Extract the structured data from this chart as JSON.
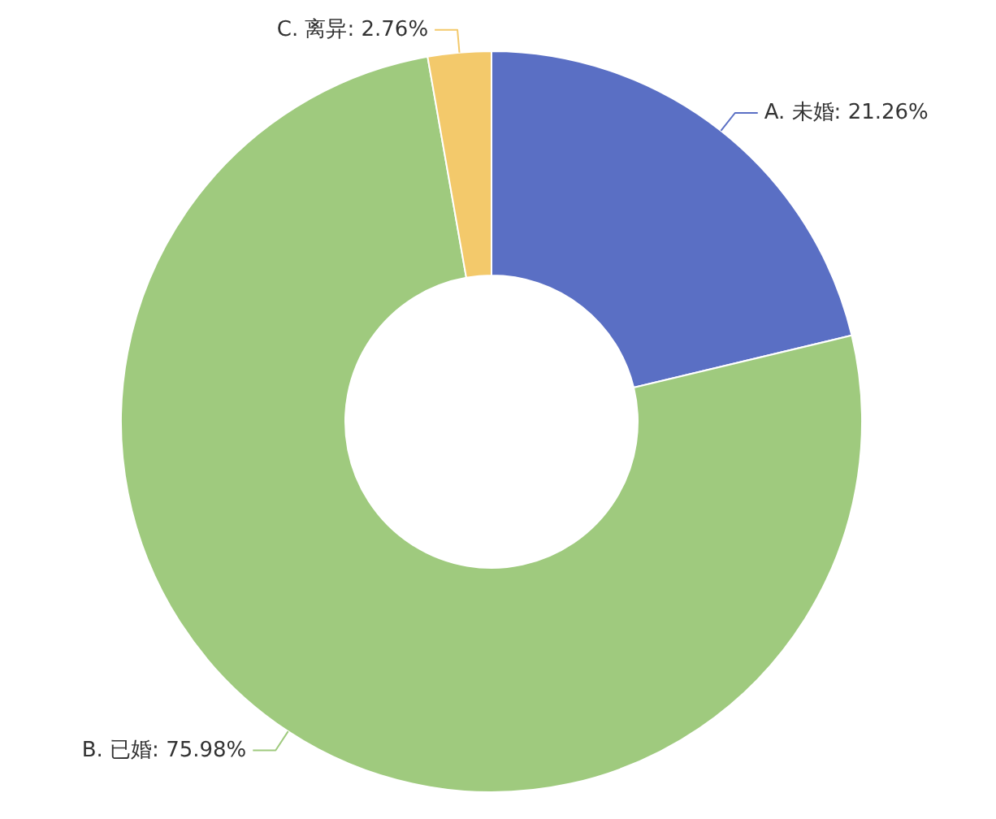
{
  "chart_data": {
    "type": "donut",
    "categories": [
      "A. 未婚",
      "B. 已婚",
      "C. 离异"
    ],
    "values": [
      21.26,
      75.98,
      2.76
    ],
    "colors": [
      "#5a6fc4",
      "#9fca7e",
      "#f3c96b"
    ],
    "value_labels": [
      "21.26%",
      "75.98%",
      "2.76%"
    ]
  }
}
